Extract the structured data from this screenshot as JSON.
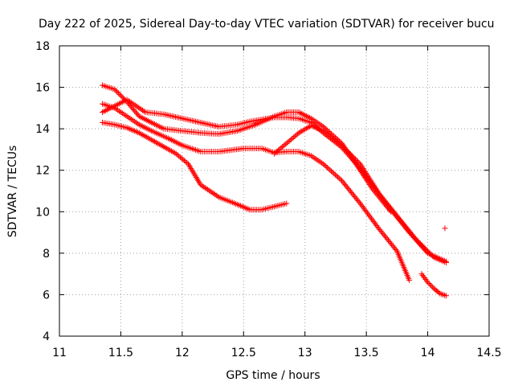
{
  "chart_data": {
    "type": "scatter",
    "title": "Day 222 of 2025, Sidereal Day-to-day VTEC variation (SDTVAR) for receiver bucu",
    "xlabel": "GPS time / hours",
    "ylabel": "SDTVAR / TECUs",
    "xlim": [
      11,
      14.5
    ],
    "ylim": [
      4,
      18
    ],
    "xticks": [
      "11",
      "11.5",
      "12",
      "12.5",
      "13",
      "13.5",
      "14",
      "14.5"
    ],
    "yticks": [
      "4",
      "6",
      "8",
      "10",
      "12",
      "14",
      "16",
      "18"
    ],
    "grid": true,
    "marker": "+",
    "color": "#ff0000",
    "series": [
      {
        "name": "arc-1",
        "x": [
          11.35,
          11.45,
          11.55,
          11.65,
          11.8,
          11.95,
          12.05,
          12.15,
          12.3,
          12.45,
          12.55,
          12.65,
          12.75,
          12.85
        ],
        "y": [
          14.3,
          14.2,
          14.05,
          13.8,
          13.3,
          12.8,
          12.3,
          11.3,
          10.7,
          10.35,
          10.1,
          10.1,
          10.25,
          10.4
        ]
      },
      {
        "name": "arc-2",
        "x": [
          11.35,
          11.45,
          11.55,
          11.65,
          11.75,
          11.9,
          12.0,
          12.15,
          12.3,
          12.5,
          12.65,
          12.75,
          12.85,
          12.95,
          13.05,
          13.15,
          13.3,
          13.45,
          13.6,
          13.75,
          13.85
        ],
        "y": [
          15.2,
          15.0,
          14.6,
          14.2,
          13.9,
          13.5,
          13.2,
          12.9,
          12.9,
          13.05,
          13.05,
          12.85,
          12.9,
          12.9,
          12.7,
          12.3,
          11.5,
          10.4,
          9.2,
          8.1,
          6.7
        ]
      },
      {
        "name": "arc-3",
        "x": [
          11.35,
          11.45,
          11.55,
          11.7,
          11.85,
          12.0,
          12.15,
          12.3,
          12.45,
          12.55,
          12.65,
          12.75,
          12.85,
          12.95,
          13.05,
          13.15,
          13.3,
          13.45,
          13.55,
          13.7,
          13.85,
          14.0,
          14.15
        ],
        "y": [
          14.8,
          15.1,
          15.4,
          14.8,
          14.7,
          14.5,
          14.3,
          14.1,
          14.2,
          14.35,
          14.45,
          14.55,
          14.55,
          14.5,
          14.3,
          13.8,
          13.1,
          12.1,
          11.3,
          10.1,
          9.0,
          8.0,
          7.6
        ]
      },
      {
        "name": "arc-4",
        "x": [
          11.35,
          11.45,
          11.55,
          11.65,
          11.75,
          11.85,
          12.0,
          12.15,
          12.3,
          12.45,
          12.6,
          12.75,
          12.85,
          12.95,
          13.05,
          13.15,
          13.3,
          13.45,
          13.55,
          13.7
        ],
        "y": [
          16.1,
          15.9,
          15.3,
          14.6,
          14.3,
          14.0,
          13.9,
          13.8,
          13.75,
          13.9,
          14.2,
          14.6,
          14.8,
          14.8,
          14.5,
          14.1,
          13.3,
          12.0,
          11.1,
          10.0
        ]
      },
      {
        "name": "arc-5",
        "x": [
          12.75,
          12.85,
          12.95,
          13.05,
          13.15,
          13.3,
          13.45,
          13.6,
          13.75,
          13.9,
          14.05,
          14.15
        ],
        "y": [
          12.8,
          13.3,
          13.8,
          14.15,
          13.9,
          13.2,
          12.3,
          10.9,
          9.8,
          8.7,
          7.8,
          7.55
        ]
      },
      {
        "name": "arc-6",
        "x": [
          13.95,
          14.0,
          14.05,
          14.1,
          14.15
        ],
        "y": [
          7.0,
          6.6,
          6.3,
          6.05,
          5.95
        ]
      },
      {
        "name": "outlier",
        "x": [
          14.14
        ],
        "y": [
          9.2
        ]
      }
    ]
  }
}
